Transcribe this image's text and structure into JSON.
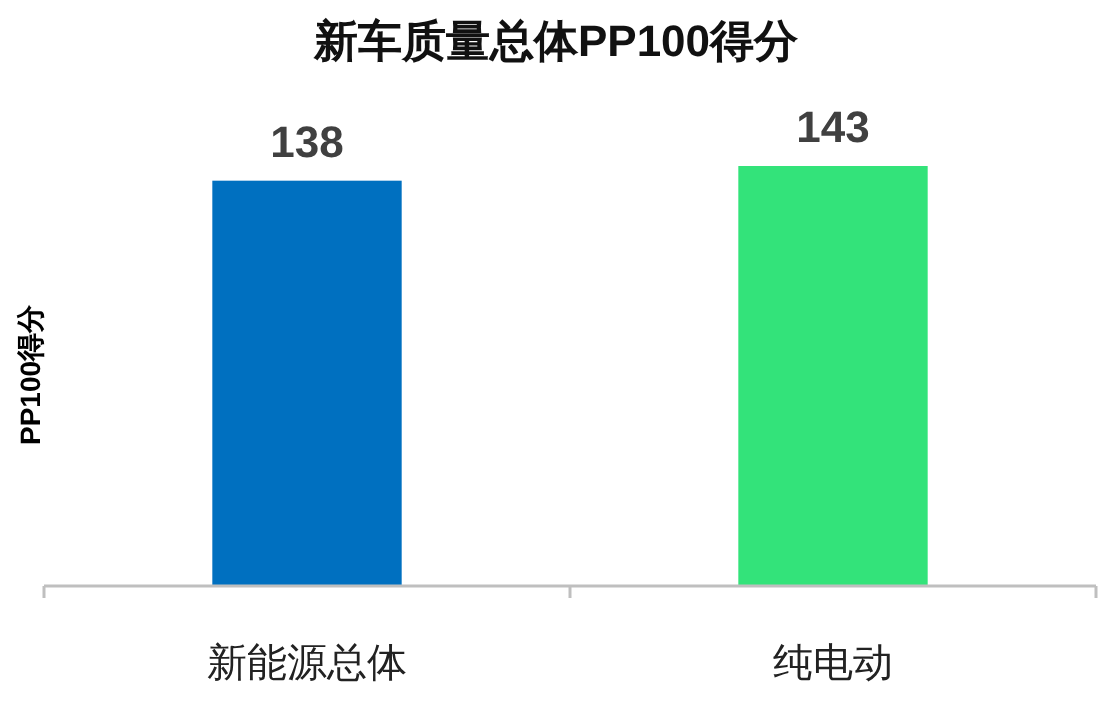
{
  "chart_data": {
    "type": "bar",
    "title": "新车质量总体PP100得分",
    "ylabel": "PP100得分",
    "categories": [
      "新能源总体",
      "纯电动"
    ],
    "values": [
      138,
      143
    ],
    "colors": [
      "#0070c0",
      "#33e37a"
    ],
    "data_labels": true
  }
}
